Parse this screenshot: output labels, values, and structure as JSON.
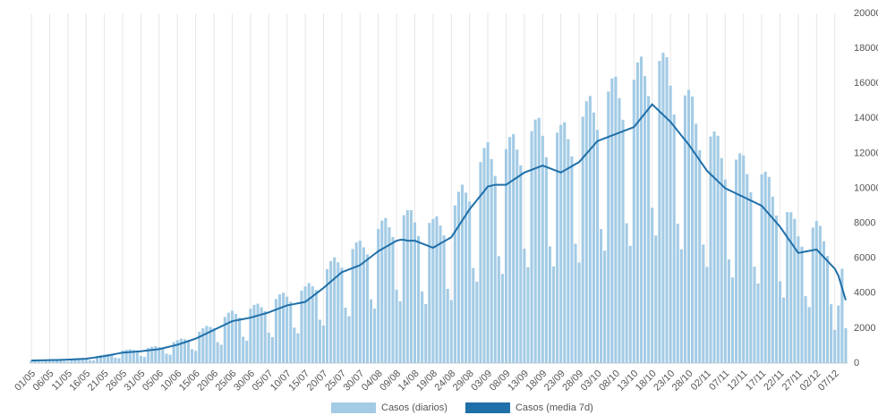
{
  "chart_data": {
    "type": "bar",
    "categories": [
      "01/05",
      null,
      null,
      null,
      null,
      "06/05",
      null,
      null,
      null,
      null,
      "11/05",
      null,
      null,
      null,
      null,
      "16/05",
      null,
      null,
      null,
      null,
      "21/05",
      null,
      null,
      null,
      null,
      "26/05",
      null,
      null,
      null,
      null,
      "31/05",
      null,
      null,
      null,
      null,
      "05/06",
      null,
      null,
      null,
      null,
      "10/06",
      null,
      null,
      null,
      null,
      "15/06",
      null,
      null,
      null,
      null,
      "20/06",
      null,
      null,
      null,
      null,
      "25/06",
      null,
      null,
      null,
      null,
      "30/06",
      null,
      null,
      null,
      null,
      "05/07",
      null,
      null,
      null,
      null,
      "10/07",
      null,
      null,
      null,
      null,
      "15/07",
      null,
      null,
      null,
      null,
      "20/07",
      null,
      null,
      null,
      null,
      "25/07",
      null,
      null,
      null,
      null,
      "30/07",
      null,
      null,
      null,
      null,
      "04/08",
      null,
      null,
      null,
      null,
      "09/08",
      null,
      null,
      null,
      null,
      "14/08",
      null,
      null,
      null,
      null,
      "19/08",
      null,
      null,
      null,
      null,
      "24/08",
      null,
      null,
      null,
      null,
      "29/08",
      null,
      null,
      null,
      null,
      "03/09",
      null,
      null,
      null,
      null,
      "08/09",
      null,
      null,
      null,
      null,
      "13/09",
      null,
      null,
      null,
      null,
      "18/09",
      null,
      null,
      null,
      null,
      "23/09",
      null,
      null,
      null,
      null,
      "28/09",
      null,
      null,
      null,
      null,
      "03/10",
      null,
      null,
      null,
      null,
      "08/10",
      null,
      null,
      null,
      null,
      "13/10",
      null,
      null,
      null,
      null,
      "18/10",
      null,
      null,
      null,
      null,
      "23/10",
      null,
      null,
      null,
      null,
      "28/10",
      null,
      null,
      null,
      null,
      "02/11",
      null,
      null,
      null,
      null,
      "07/11",
      null,
      null,
      null,
      null,
      "12/11",
      null,
      null,
      null,
      null,
      "17/11",
      null,
      null,
      null,
      null,
      "22/11",
      null,
      null,
      null,
      null,
      "27/11",
      null,
      null,
      null,
      null,
      "02/12",
      null,
      null,
      null,
      null,
      "07/12",
      null,
      null,
      null
    ],
    "series": [
      {
        "name": "Casos (diarios)",
        "color": "#a3cbe5",
        "kind": "bar",
        "values": [
          170,
          160,
          95,
          80,
          200,
          210,
          220,
          210,
          200,
          120,
          100,
          250,
          280,
          290,
          280,
          260,
          170,
          160,
          410,
          460,
          500,
          510,
          500,
          310,
          280,
          720,
          770,
          790,
          750,
          700,
          410,
          350,
          870,
          940,
          970,
          920,
          890,
          540,
          480,
          1200,
          1310,
          1400,
          1370,
          1320,
          800,
          700,
          1800,
          2000,
          2130,
          2070,
          2000,
          1200,
          1050,
          2640,
          2880,
          3000,
          2810,
          2600,
          1510,
          1280,
          3120,
          3330,
          3400,
          3200,
          2980,
          1740,
          1490,
          3670,
          3930,
          4030,
          3800,
          3510,
          2030,
          1710,
          4150,
          4380,
          4580,
          4390,
          4180,
          2480,
          2150,
          5380,
          5830,
          6050,
          5770,
          5460,
          3170,
          2680,
          6530,
          6900,
          7000,
          6620,
          6220,
          3650,
          3120,
          7680,
          8150,
          8300,
          7770,
          7220,
          4200,
          3530,
          8460,
          8750,
          8750,
          8050,
          7270,
          4100,
          3380,
          8020,
          8250,
          8400,
          7870,
          7310,
          4250,
          3600,
          9020,
          9800,
          10200,
          9750,
          9240,
          5440,
          4660,
          11500,
          12300,
          12630,
          11670,
          10710,
          6120,
          5100,
          12240,
          12930,
          13100,
          12210,
          11300,
          6540,
          5490,
          13270,
          13930,
          14030,
          13000,
          11780,
          6680,
          5530,
          13180,
          13630,
          13780,
          12810,
          11820,
          6830,
          5750,
          14090,
          14980,
          15280,
          14330,
          13340,
          7670,
          6430,
          15530,
          16280,
          16380,
          15160,
          13920,
          8000,
          6710,
          16200,
          17200,
          17530,
          16420,
          15270,
          8880,
          7300,
          17280,
          17750,
          17500,
          15870,
          14220,
          7970,
          6510,
          15310,
          15630,
          15250,
          13690,
          12180,
          6780,
          5500,
          12960,
          13250,
          13000,
          11730,
          10500,
          5940,
          4900,
          11640,
          12000,
          11880,
          10810,
          9770,
          5520,
          4550,
          10800,
          10950,
          10650,
          9520,
          8440,
          4680,
          3750,
          8640,
          8630,
          8250,
          7250,
          6660,
          3830,
          3210,
          7750,
          8130,
          7850,
          6970,
          6130,
          3370,
          1900,
          3300,
          5400,
          2000
        ]
      },
      {
        "name": "Casos (media 7d)",
        "color": "#1f6fa8",
        "kind": "line",
        "values": [
          150,
          154,
          158,
          162,
          166,
          170,
          176,
          182,
          188,
          194,
          200,
          210,
          220,
          230,
          240,
          250,
          280,
          310,
          340,
          370,
          400,
          440,
          480,
          520,
          560,
          600,
          616,
          632,
          648,
          664,
          680,
          704,
          728,
          752,
          776,
          800,
          850,
          900,
          950,
          1000,
          1050,
          1120,
          1190,
          1260,
          1330,
          1400,
          1500,
          1600,
          1700,
          1800,
          1900,
          2000,
          2100,
          2200,
          2300,
          2400,
          2440,
          2480,
          2520,
          2560,
          2600,
          2660,
          2720,
          2780,
          2840,
          2900,
          2980,
          3060,
          3140,
          3220,
          3300,
          3340,
          3380,
          3420,
          3460,
          3500,
          3660,
          3820,
          3980,
          4140,
          4300,
          4480,
          4660,
          4840,
          5020,
          5200,
          5280,
          5360,
          5440,
          5520,
          5600,
          5760,
          5920,
          6080,
          6240,
          6400,
          6520,
          6640,
          6760,
          6880,
          7000,
          7050,
          7050,
          7000,
          7000,
          7000,
          6920,
          6840,
          6760,
          6680,
          6600,
          6720,
          6840,
          6960,
          7080,
          7200,
          7520,
          7840,
          8160,
          8480,
          8800,
          9060,
          9320,
          9580,
          9840,
          10100,
          10150,
          10200,
          10200,
          10200,
          10200,
          10340,
          10480,
          10620,
          10760,
          10900,
          10980,
          11060,
          11140,
          11220,
          11300,
          11220,
          11140,
          11060,
          10980,
          10900,
          11020,
          11140,
          11260,
          11380,
          11500,
          11740,
          11980,
          12220,
          12460,
          12700,
          12780,
          12860,
          12940,
          13020,
          13100,
          13180,
          13260,
          13340,
          13420,
          13500,
          13760,
          14020,
          14280,
          14540,
          14800,
          14600,
          14400,
          14200,
          14000,
          13800,
          13540,
          13280,
          13020,
          12760,
          12500,
          12200,
          11900,
          11600,
          11300,
          11000,
          10800,
          10600,
          10400,
          10200,
          10000,
          9900,
          9800,
          9700,
          9600,
          9500,
          9400,
          9300,
          9200,
          9100,
          9000,
          8760,
          8520,
          8280,
          8040,
          7800,
          7500,
          7200,
          6900,
          6600,
          6300,
          6340,
          6380,
          6420,
          6460,
          6500,
          6280,
          6060,
          5840,
          5620,
          5400,
          5000,
          4300,
          3600
        ]
      }
    ],
    "ylim": [
      0,
      20000
    ],
    "yticks": [
      0,
      2000,
      4000,
      6000,
      8000,
      10000,
      12000,
      14000,
      16000,
      18000,
      20000
    ],
    "grid": true
  }
}
